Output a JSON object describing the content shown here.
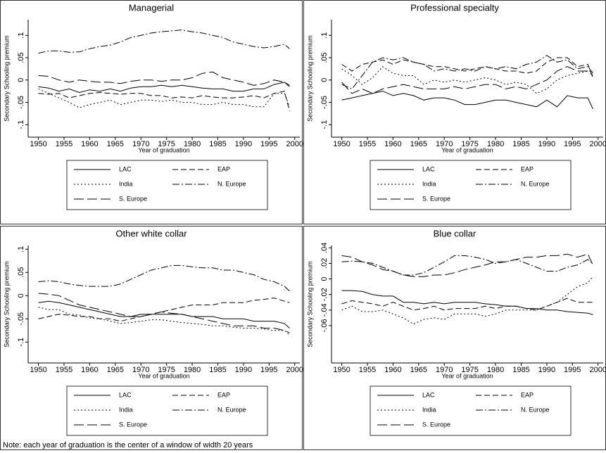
{
  "chart_data": [
    {
      "type": "line",
      "title": "Managerial",
      "y_label": "Secondary Schooling premium",
      "x_label": "Year of graduation",
      "x": [
        1950,
        1952,
        1954,
        1956,
        1958,
        1960,
        1962,
        1964,
        1966,
        1968,
        1970,
        1972,
        1974,
        1976,
        1978,
        1980,
        1982,
        1984,
        1986,
        1988,
        1990,
        1992,
        1994,
        1996,
        1998,
        1999
      ],
      "xlim": [
        1948,
        2001
      ],
      "xticks": [
        1950,
        1955,
        1960,
        1965,
        1970,
        1975,
        1980,
        1985,
        1990,
        1995,
        2000
      ],
      "ylim": [
        -0.128,
        0.135
      ],
      "yticks": [
        {
          "value": -0.1,
          "label": "-.1"
        },
        {
          "value": -0.05,
          "label": "-.05"
        },
        0,
        {
          "value": 0.05,
          "label": ".05"
        },
        {
          "value": 0.1,
          "label": ".1"
        }
      ],
      "legend": "bottom",
      "series": [
        {
          "name": "LAC",
          "color": "#000000",
          "dash": "solid",
          "values": [
            -0.015,
            -0.018,
            -0.025,
            -0.02,
            -0.028,
            -0.022,
            -0.025,
            -0.02,
            -0.025,
            -0.018,
            -0.015,
            -0.015,
            -0.012,
            -0.015,
            -0.012,
            -0.015,
            -0.018,
            -0.02,
            -0.02,
            -0.025,
            -0.025,
            -0.02,
            -0.02,
            -0.01,
            -0.005,
            -0.015
          ]
        },
        {
          "name": "EAP",
          "color": "#000000",
          "dash": "dash",
          "values": [
            -0.03,
            -0.032,
            -0.03,
            -0.04,
            -0.035,
            -0.03,
            -0.028,
            -0.03,
            -0.032,
            -0.03,
            -0.03,
            -0.035,
            -0.035,
            -0.04,
            -0.038,
            -0.04,
            -0.035,
            -0.038,
            -0.04,
            -0.04,
            -0.038,
            -0.035,
            -0.04,
            -0.03,
            -0.025,
            -0.07
          ]
        },
        {
          "name": "India",
          "color": "#000000",
          "dash": "dot",
          "values": [
            -0.02,
            -0.03,
            -0.04,
            -0.05,
            -0.062,
            -0.055,
            -0.05,
            -0.045,
            -0.055,
            -0.05,
            -0.045,
            -0.045,
            -0.048,
            -0.045,
            -0.05,
            -0.05,
            -0.055,
            -0.055,
            -0.05,
            -0.055,
            -0.055,
            -0.06,
            -0.06,
            -0.03,
            -0.03,
            -0.06
          ]
        },
        {
          "name": "N. Europe",
          "color": "#000000",
          "dash": "dashdot",
          "values": [
            0.06,
            0.065,
            0.065,
            0.062,
            0.063,
            0.07,
            0.075,
            0.078,
            0.085,
            0.095,
            0.1,
            0.105,
            0.108,
            0.11,
            0.112,
            0.108,
            0.105,
            0.1,
            0.095,
            0.085,
            0.08,
            0.075,
            0.072,
            0.075,
            0.08,
            0.07
          ]
        },
        {
          "name": "S. Europe",
          "color": "#000000",
          "dash": "longdash",
          "values": [
            0.01,
            0.008,
            0,
            -0.005,
            0,
            -0.003,
            -0.005,
            -0.005,
            -0.008,
            -0.003,
            0,
            0,
            -0.003,
            0,
            0,
            0.005,
            0.015,
            0.018,
            0.005,
            0,
            -0.005,
            -0.012,
            -0.008,
            0,
            -0.005,
            -0.012
          ]
        }
      ]
    },
    {
      "type": "line",
      "title": "Professional specialty",
      "y_label": "Secondary Schooling premium",
      "x_label": "Year of graduation",
      "x": [
        1950,
        1952,
        1954,
        1956,
        1958,
        1960,
        1962,
        1964,
        1966,
        1968,
        1970,
        1972,
        1974,
        1976,
        1978,
        1980,
        1982,
        1984,
        1986,
        1988,
        1990,
        1992,
        1994,
        1996,
        1998,
        1999
      ],
      "xlim": [
        1948,
        2001
      ],
      "xticks": [
        1950,
        1955,
        1960,
        1965,
        1970,
        1975,
        1980,
        1985,
        1990,
        1995,
        2000
      ],
      "ylim": [
        -0.128,
        0.135
      ],
      "yticks": [
        {
          "value": -0.1,
          "label": "-.1"
        },
        {
          "value": -0.05,
          "label": "-.05"
        },
        0,
        {
          "value": 0.05,
          "label": ".05"
        },
        {
          "value": 0.1,
          "label": ".1"
        }
      ],
      "legend": "bottom",
      "series": [
        {
          "name": "LAC",
          "color": "#000000",
          "dash": "solid",
          "values": [
            -0.045,
            -0.04,
            -0.035,
            -0.03,
            -0.025,
            -0.035,
            -0.03,
            -0.035,
            -0.045,
            -0.04,
            -0.04,
            -0.045,
            -0.055,
            -0.055,
            -0.05,
            -0.045,
            -0.045,
            -0.05,
            -0.055,
            -0.06,
            -0.045,
            -0.06,
            -0.035,
            -0.04,
            -0.04,
            -0.065
          ]
        },
        {
          "name": "EAP",
          "color": "#000000",
          "dash": "dash",
          "values": [
            0.035,
            0.02,
            0.035,
            0.04,
            0.045,
            0.035,
            0.045,
            0.04,
            0.035,
            0.03,
            0.03,
            0.025,
            0.02,
            0.025,
            0.03,
            0.025,
            0.02,
            0.02,
            0.015,
            0.02,
            0.04,
            0.05,
            0.05,
            0.03,
            0.035,
            0.005
          ]
        },
        {
          "name": "India",
          "color": "#000000",
          "dash": "dot",
          "values": [
            0.025,
            0.01,
            -0.01,
            0.005,
            0.03,
            0.015,
            0.01,
            0.01,
            -0.01,
            0,
            -0.005,
            0,
            -0.005,
            0,
            0.005,
            0,
            -0.01,
            -0.005,
            -0.01,
            -0.03,
            -0.02,
            0,
            0.01,
            0.015,
            0.02,
            0.02
          ]
        },
        {
          "name": "N. Europe",
          "color": "#000000",
          "dash": "dashdot",
          "values": [
            -0.01,
            -0.02,
            0.01,
            0.04,
            0.05,
            0.045,
            0.05,
            0.04,
            0.035,
            0.02,
            0.025,
            0.02,
            0.025,
            0.02,
            0.03,
            0.025,
            0.03,
            0.025,
            0.035,
            0.04,
            0.055,
            0.04,
            0.045,
            0.025,
            0.03,
            0.015
          ]
        },
        {
          "name": "S. Europe",
          "color": "#000000",
          "dash": "longdash",
          "values": [
            -0.005,
            -0.03,
            -0.02,
            -0.03,
            -0.02,
            -0.015,
            -0.01,
            -0.015,
            -0.02,
            -0.02,
            -0.02,
            -0.015,
            -0.02,
            -0.015,
            -0.01,
            -0.01,
            -0.02,
            -0.015,
            -0.02,
            -0.01,
            0,
            0.02,
            0.03,
            0.02,
            0.02,
            0.01
          ]
        }
      ]
    },
    {
      "type": "line",
      "title": "Other white collar",
      "y_label": "Secondary Schooling premium",
      "x_label": "Year of graduation",
      "x": [
        1950,
        1952,
        1954,
        1956,
        1958,
        1960,
        1962,
        1964,
        1966,
        1968,
        1970,
        1972,
        1974,
        1976,
        1978,
        1980,
        1982,
        1984,
        1986,
        1988,
        1990,
        1992,
        1994,
        1996,
        1998,
        1999
      ],
      "xlim": [
        1948,
        2001
      ],
      "xticks": [
        1950,
        1955,
        1960,
        1965,
        1970,
        1975,
        1980,
        1985,
        1990,
        1995,
        2000
      ],
      "ylim": [
        -0.145,
        0.108
      ],
      "yticks": [
        {
          "value": -0.1,
          "label": "-.1"
        },
        {
          "value": -0.05,
          "label": "-.05"
        },
        0,
        {
          "value": 0.05,
          "label": ".05"
        },
        {
          "value": 0.1,
          "label": ".1"
        }
      ],
      "legend": "bottom",
      "series": [
        {
          "name": "LAC",
          "color": "#000000",
          "dash": "solid",
          "values": [
            -0.015,
            -0.012,
            -0.015,
            -0.02,
            -0.025,
            -0.03,
            -0.035,
            -0.04,
            -0.045,
            -0.045,
            -0.04,
            -0.04,
            -0.04,
            -0.04,
            -0.04,
            -0.045,
            -0.045,
            -0.045,
            -0.05,
            -0.05,
            -0.05,
            -0.055,
            -0.055,
            -0.055,
            -0.06,
            -0.07
          ]
        },
        {
          "name": "EAP",
          "color": "#000000",
          "dash": "dash",
          "values": [
            -0.05,
            -0.045,
            -0.04,
            -0.042,
            -0.045,
            -0.045,
            -0.05,
            -0.05,
            -0.055,
            -0.05,
            -0.045,
            -0.04,
            -0.035,
            -0.03,
            -0.025,
            -0.02,
            -0.02,
            -0.02,
            -0.015,
            -0.015,
            -0.015,
            -0.01,
            -0.008,
            -0.005,
            -0.012,
            -0.015
          ]
        },
        {
          "name": "India",
          "color": "#000000",
          "dash": "dot",
          "values": [
            -0.025,
            -0.03,
            -0.03,
            -0.04,
            -0.042,
            -0.048,
            -0.05,
            -0.055,
            -0.06,
            -0.058,
            -0.055,
            -0.052,
            -0.052,
            -0.055,
            -0.058,
            -0.06,
            -0.062,
            -0.065,
            -0.065,
            -0.068,
            -0.07,
            -0.07,
            -0.072,
            -0.075,
            -0.075,
            -0.085
          ]
        },
        {
          "name": "N. Europe",
          "color": "#000000",
          "dash": "dashdot",
          "values": [
            0.03,
            0.032,
            0.03,
            0.025,
            0.022,
            0.02,
            0.02,
            0.02,
            0.025,
            0.035,
            0.045,
            0.055,
            0.06,
            0.065,
            0.065,
            0.062,
            0.06,
            0.06,
            0.055,
            0.055,
            0.05,
            0.045,
            0.035,
            0.03,
            0.02,
            0.01
          ]
        },
        {
          "name": "S. Europe",
          "color": "#000000",
          "dash": "longdash",
          "values": [
            0.005,
            0.003,
            0,
            -0.01,
            -0.02,
            -0.025,
            -0.03,
            -0.035,
            -0.04,
            -0.045,
            -0.045,
            -0.04,
            -0.035,
            -0.038,
            -0.04,
            -0.045,
            -0.05,
            -0.055,
            -0.06,
            -0.065,
            -0.065,
            -0.065,
            -0.07,
            -0.07,
            -0.075,
            -0.08
          ]
        }
      ]
    },
    {
      "type": "line",
      "title": "Blue collar",
      "y_label": "Secondary Schooling premium",
      "x_label": "Year of graduation",
      "x": [
        1950,
        1952,
        1954,
        1956,
        1958,
        1960,
        1962,
        1964,
        1966,
        1968,
        1970,
        1972,
        1974,
        1976,
        1978,
        1980,
        1982,
        1984,
        1986,
        1988,
        1990,
        1992,
        1994,
        1996,
        1998,
        1999
      ],
      "xlim": [
        1948,
        2001
      ],
      "xticks": [
        1950,
        1955,
        1960,
        1965,
        1970,
        1975,
        1980,
        1985,
        1990,
        1995,
        2000
      ],
      "ylim": [
        -0.108,
        0.043
      ],
      "yticks": [
        {
          "value": -0.06,
          "label": "-.06"
        },
        {
          "value": -0.04,
          "label": "-.04"
        },
        {
          "value": -0.02,
          "label": "-.02"
        },
        0,
        {
          "value": 0.02,
          "label": ".02"
        },
        {
          "value": 0.04,
          "label": ".04"
        }
      ],
      "legend": "bottom",
      "series": [
        {
          "name": "LAC",
          "color": "#000000",
          "dash": "solid",
          "values": [
            -0.015,
            -0.015,
            -0.016,
            -0.02,
            -0.022,
            -0.022,
            -0.03,
            -0.03,
            -0.032,
            -0.03,
            -0.032,
            -0.03,
            -0.03,
            -0.03,
            -0.032,
            -0.033,
            -0.035,
            -0.035,
            -0.038,
            -0.038,
            -0.04,
            -0.04,
            -0.042,
            -0.043,
            -0.044,
            -0.046
          ]
        },
        {
          "name": "EAP",
          "color": "#000000",
          "dash": "dash",
          "values": [
            -0.032,
            -0.028,
            -0.03,
            -0.032,
            -0.035,
            -0.03,
            -0.035,
            -0.04,
            -0.038,
            -0.035,
            -0.04,
            -0.038,
            -0.038,
            -0.038,
            -0.035,
            -0.038,
            -0.035,
            -0.035,
            -0.038,
            -0.04,
            -0.035,
            -0.03,
            -0.025,
            -0.03,
            -0.03,
            -0.03
          ]
        },
        {
          "name": "India",
          "color": "#000000",
          "dash": "dot",
          "values": [
            -0.04,
            -0.035,
            -0.042,
            -0.042,
            -0.04,
            -0.045,
            -0.05,
            -0.058,
            -0.052,
            -0.05,
            -0.052,
            -0.045,
            -0.045,
            -0.045,
            -0.048,
            -0.045,
            -0.04,
            -0.04,
            -0.04,
            -0.04,
            -0.035,
            -0.03,
            -0.02,
            -0.01,
            -0.005,
            0.003
          ]
        },
        {
          "name": "N. Europe",
          "color": "#000000",
          "dash": "dashdot",
          "values": [
            0.022,
            0.023,
            0.022,
            0.02,
            0.015,
            0.01,
            0.005,
            0.005,
            0.008,
            0.015,
            0.022,
            0.03,
            0.03,
            0.028,
            0.025,
            0.02,
            0.022,
            0.025,
            0.02,
            0.015,
            0.01,
            0.01,
            0.015,
            0.018,
            0.025,
            0.02
          ]
        },
        {
          "name": "S. Europe",
          "color": "#000000",
          "dash": "longdash",
          "values": [
            0.03,
            0.028,
            0.022,
            0.018,
            0.012,
            0.01,
            0.005,
            0.003,
            0.003,
            0.005,
            0.005,
            0.008,
            0.012,
            0.015,
            0.018,
            0.022,
            0.022,
            0.025,
            0.028,
            0.028,
            0.03,
            0.03,
            0.032,
            0.028,
            0.032,
            0.018
          ]
        }
      ]
    }
  ],
  "note": "Note: each year of graduation is the center of a window of width 20 years"
}
